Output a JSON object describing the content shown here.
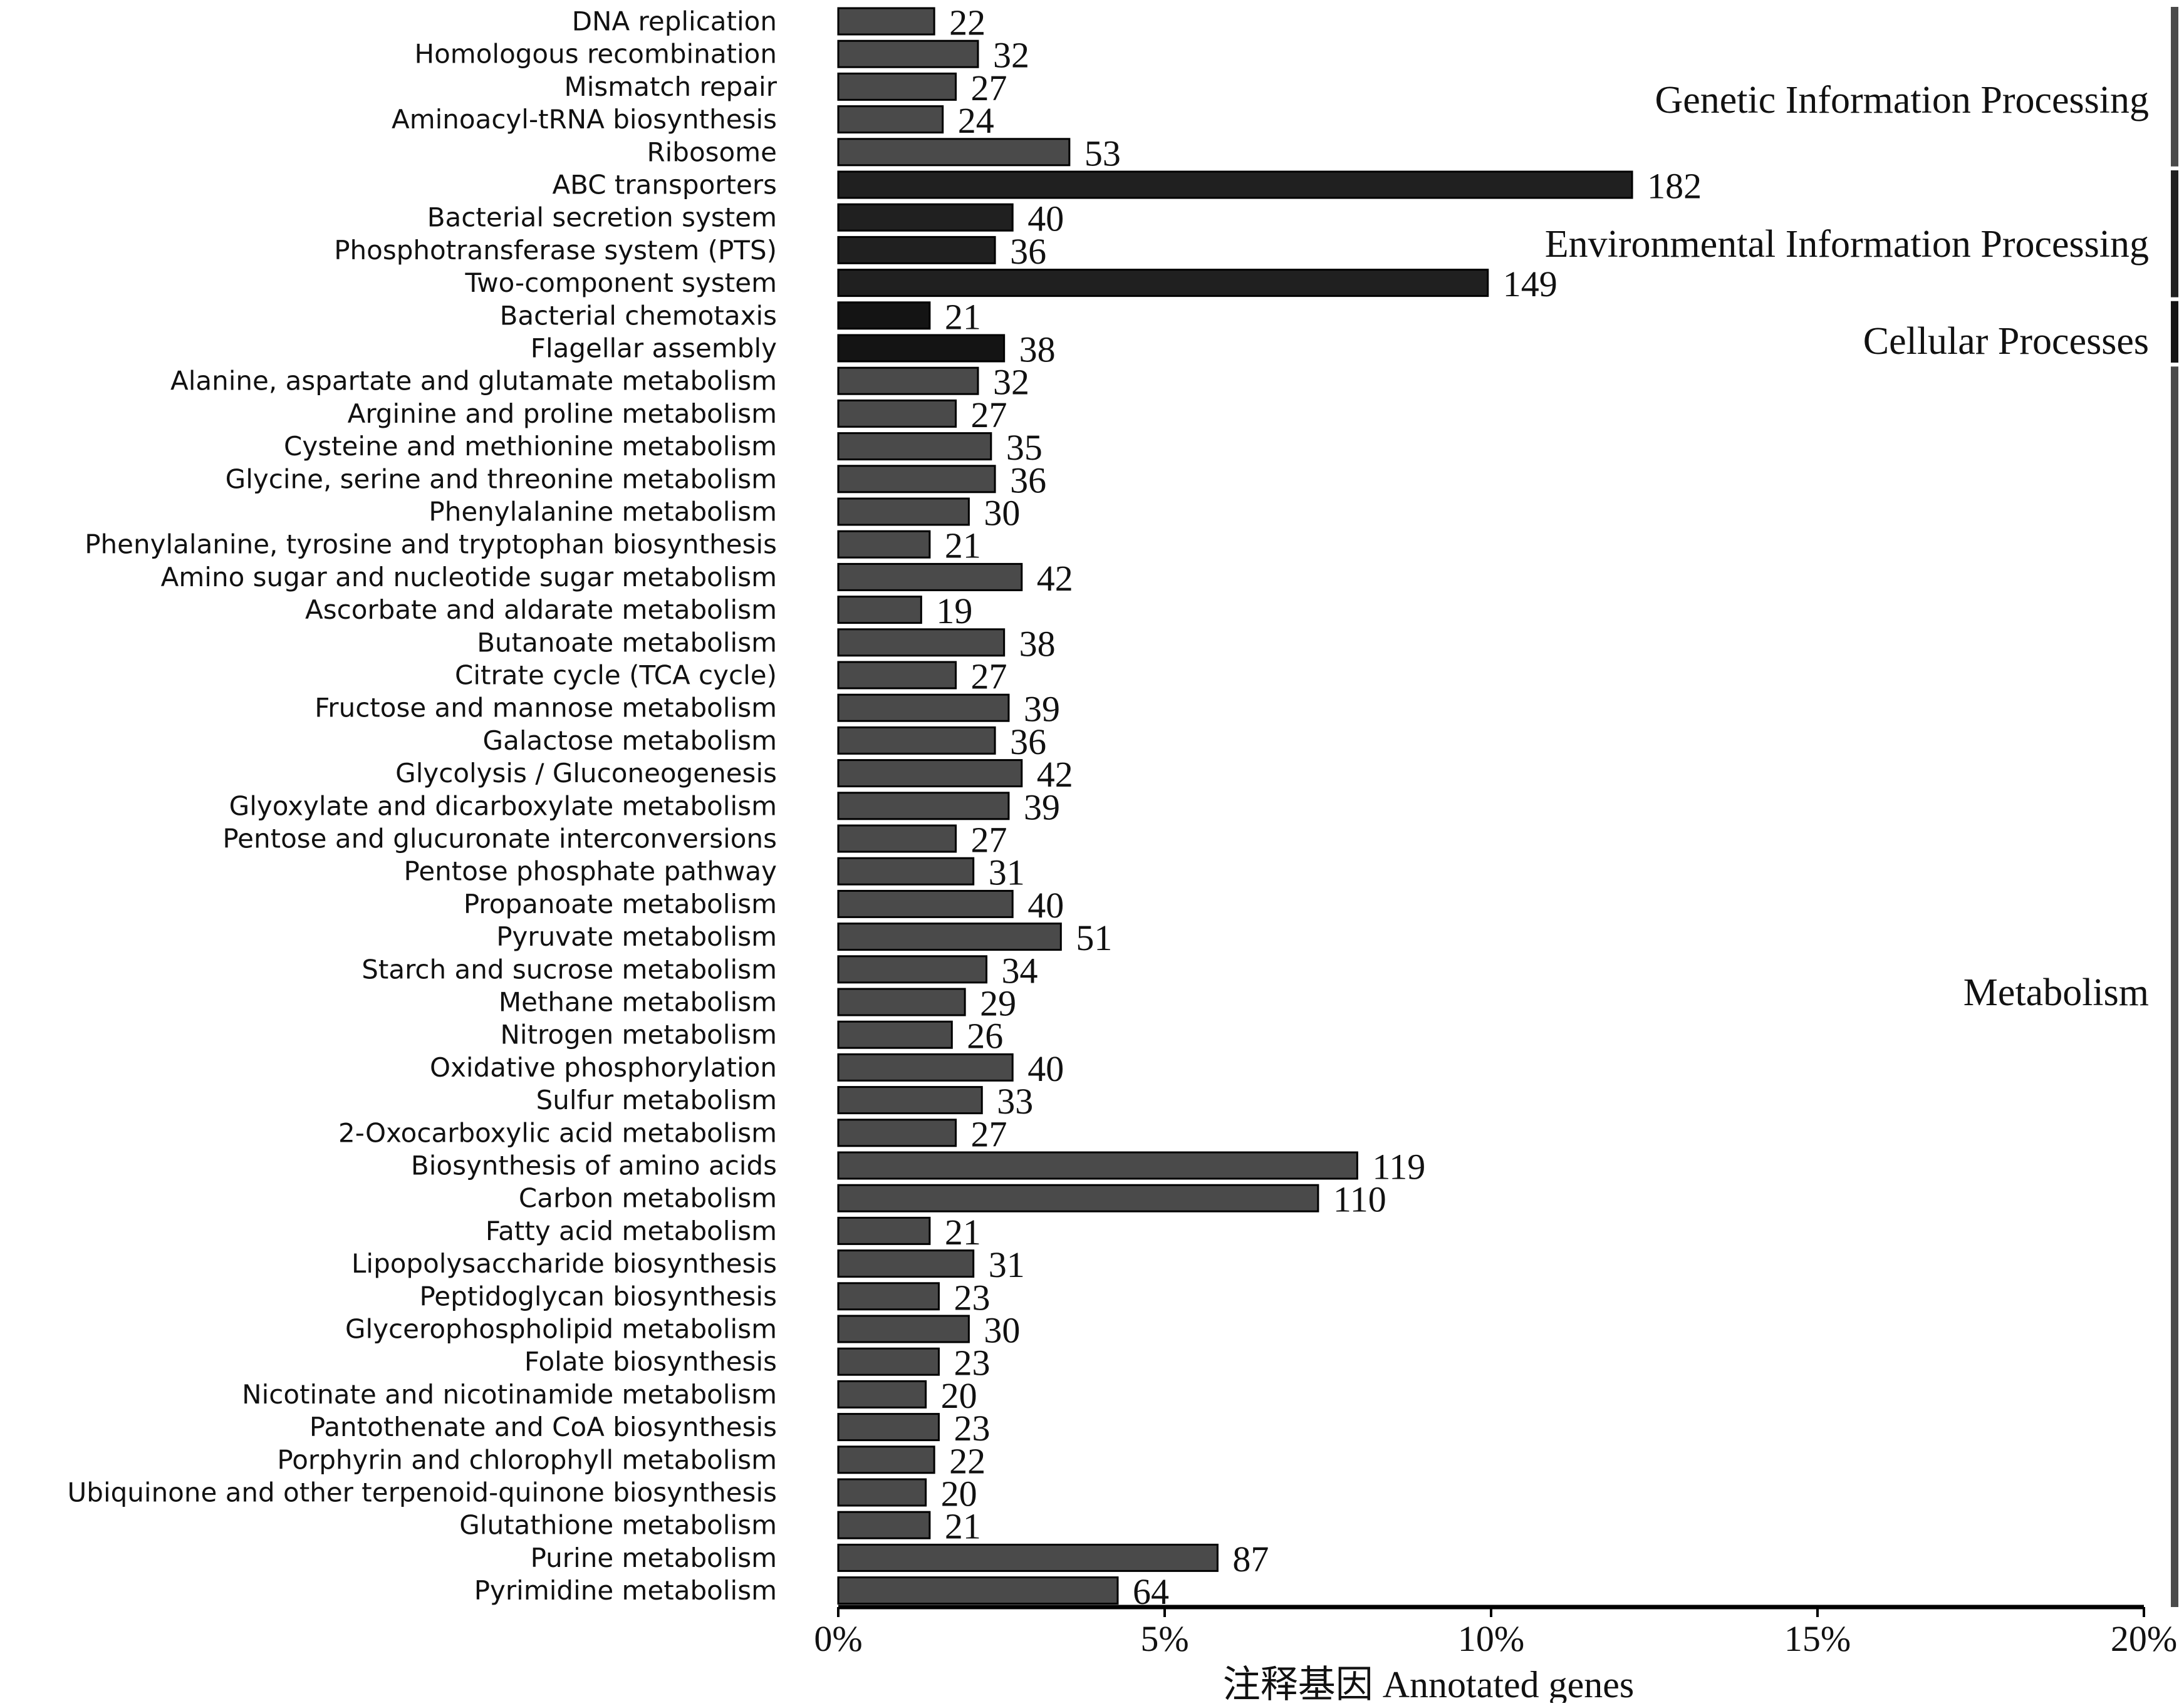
{
  "chart_data": {
    "type": "bar",
    "orientation": "horizontal",
    "xlabel": "注释基因 Annotated genes",
    "xlim": [
      0,
      20
    ],
    "xticks": [
      {
        "value": 0,
        "label": "0%"
      },
      {
        "value": 5,
        "label": "5%"
      },
      {
        "value": 10,
        "label": "10%"
      },
      {
        "value": 15,
        "label": "15%"
      },
      {
        "value": 20,
        "label": "20%"
      }
    ],
    "grid": false,
    "groups": [
      {
        "name": "Genetic Information Processing",
        "color": "#4a4a4a",
        "start": 0,
        "end": 4
      },
      {
        "name": "Environmental Information Processing",
        "color": "#202020",
        "start": 5,
        "end": 8
      },
      {
        "name": "Cellular Processes",
        "color": "#141414",
        "start": 9,
        "end": 10
      },
      {
        "name": "Metabolism",
        "color": "#4a4a4a",
        "start": 11,
        "end": 48
      }
    ],
    "bars": [
      {
        "label": "DNA replication",
        "count": 22,
        "percent": 1.47
      },
      {
        "label": "Homologous recombination",
        "count": 32,
        "percent": 2.14
      },
      {
        "label": "Mismatch repair",
        "count": 27,
        "percent": 1.8
      },
      {
        "label": "Aminoacyl-tRNA biosynthesis",
        "count": 24,
        "percent": 1.6
      },
      {
        "label": "Ribosome",
        "count": 53,
        "percent": 3.54
      },
      {
        "label": "ABC transporters",
        "count": 182,
        "percent": 12.16
      },
      {
        "label": "Bacterial secretion system",
        "count": 40,
        "percent": 2.67
      },
      {
        "label": "Phosphotransferase system (PTS)",
        "count": 36,
        "percent": 2.4
      },
      {
        "label": "Two-component system",
        "count": 149,
        "percent": 9.95
      },
      {
        "label": "Bacterial chemotaxis",
        "count": 21,
        "percent": 1.4
      },
      {
        "label": "Flagellar assembly",
        "count": 38,
        "percent": 2.54
      },
      {
        "label": "Alanine, aspartate and glutamate metabolism",
        "count": 32,
        "percent": 2.14
      },
      {
        "label": "Arginine and proline metabolism",
        "count": 27,
        "percent": 1.8
      },
      {
        "label": "Cysteine and methionine metabolism",
        "count": 35,
        "percent": 2.34
      },
      {
        "label": "Glycine, serine and threonine metabolism",
        "count": 36,
        "percent": 2.4
      },
      {
        "label": "Phenylalanine metabolism",
        "count": 30,
        "percent": 2.0
      },
      {
        "label": "Phenylalanine, tyrosine and tryptophan biosynthesis",
        "count": 21,
        "percent": 1.4
      },
      {
        "label": "Amino sugar and nucleotide sugar metabolism",
        "count": 42,
        "percent": 2.81
      },
      {
        "label": "Ascorbate and aldarate metabolism",
        "count": 19,
        "percent": 1.27
      },
      {
        "label": "Butanoate metabolism",
        "count": 38,
        "percent": 2.54
      },
      {
        "label": "Citrate cycle (TCA cycle)",
        "count": 27,
        "percent": 1.8
      },
      {
        "label": "Fructose and mannose metabolism",
        "count": 39,
        "percent": 2.61
      },
      {
        "label": "Galactose metabolism",
        "count": 36,
        "percent": 2.4
      },
      {
        "label": "Glycolysis / Gluconeogenesis",
        "count": 42,
        "percent": 2.81
      },
      {
        "label": "Glyoxylate and dicarboxylate metabolism",
        "count": 39,
        "percent": 2.61
      },
      {
        "label": "Pentose and glucuronate interconversions",
        "count": 27,
        "percent": 1.8
      },
      {
        "label": "Pentose phosphate pathway",
        "count": 31,
        "percent": 2.07
      },
      {
        "label": "Propanoate metabolism",
        "count": 40,
        "percent": 2.67
      },
      {
        "label": "Pyruvate metabolism",
        "count": 51,
        "percent": 3.41
      },
      {
        "label": "Starch and sucrose metabolism",
        "count": 34,
        "percent": 2.27
      },
      {
        "label": "Methane metabolism",
        "count": 29,
        "percent": 1.94
      },
      {
        "label": "Nitrogen metabolism",
        "count": 26,
        "percent": 1.74
      },
      {
        "label": "Oxidative phosphorylation",
        "count": 40,
        "percent": 2.67
      },
      {
        "label": "Sulfur metabolism",
        "count": 33,
        "percent": 2.2
      },
      {
        "label": "2-Oxocarboxylic acid metabolism",
        "count": 27,
        "percent": 1.8
      },
      {
        "label": "Biosynthesis of amino acids",
        "count": 119,
        "percent": 7.95
      },
      {
        "label": "Carbon metabolism",
        "count": 110,
        "percent": 7.35
      },
      {
        "label": "Fatty acid metabolism",
        "count": 21,
        "percent": 1.4
      },
      {
        "label": "Lipopolysaccharide biosynthesis",
        "count": 31,
        "percent": 2.07
      },
      {
        "label": "Peptidoglycan biosynthesis",
        "count": 23,
        "percent": 1.54
      },
      {
        "label": "Glycerophospholipid metabolism",
        "count": 30,
        "percent": 2.0
      },
      {
        "label": "Folate biosynthesis",
        "count": 23,
        "percent": 1.54
      },
      {
        "label": "Nicotinate and nicotinamide metabolism",
        "count": 20,
        "percent": 1.34
      },
      {
        "label": "Pantothenate and CoA biosynthesis",
        "count": 23,
        "percent": 1.54
      },
      {
        "label": "Porphyrin and chlorophyll metabolism",
        "count": 22,
        "percent": 1.47
      },
      {
        "label": "Ubiquinone and other terpenoid-quinone biosynthesis",
        "count": 20,
        "percent": 1.34
      },
      {
        "label": "Glutathione metabolism",
        "count": 21,
        "percent": 1.4
      },
      {
        "label": "Purine metabolism",
        "count": 87,
        "percent": 5.81
      },
      {
        "label": "Pyrimidine metabolism",
        "count": 64,
        "percent": 4.28
      }
    ]
  }
}
